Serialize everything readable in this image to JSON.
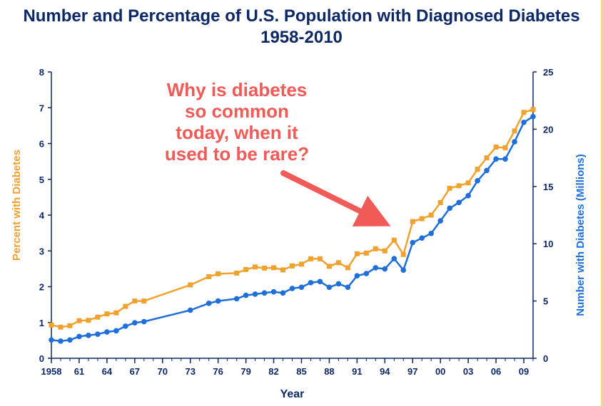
{
  "title_line1": "Number and Percentage of U.S. Population with Diagnosed Diabetes",
  "title_line2": "1958-2010",
  "chart_data": {
    "type": "line",
    "title": "Number and Percentage of U.S. Population with Diagnosed Diabetes 1958-2010",
    "xlabel": "Year",
    "ylabel_left": "Percent with Diabetes",
    "ylabel_right": "Number with Diabetes (Millions)",
    "xlim": [
      1958,
      2010
    ],
    "ylim_left": [
      0,
      8
    ],
    "ylim_right": [
      0,
      25
    ],
    "x_tick_labels": [
      "1958",
      "61",
      "64",
      "67",
      "70",
      "73",
      "76",
      "79",
      "82",
      "85",
      "88",
      "91",
      "94",
      "97",
      "00",
      "03",
      "06",
      "09"
    ],
    "x_tick_years": [
      1958,
      1961,
      1964,
      1967,
      1970,
      1973,
      1976,
      1979,
      1982,
      1985,
      1988,
      1991,
      1994,
      1997,
      2000,
      2003,
      2006,
      2009
    ],
    "y_left_ticks": [
      "0",
      "1",
      "2",
      "3",
      "4",
      "5",
      "6",
      "7",
      "8"
    ],
    "y_right_ticks": [
      "0",
      "5",
      "10",
      "15",
      "20",
      "25"
    ],
    "annotation": [
      "Why is diabetes",
      "so common",
      "today, when it",
      "used to be rare?"
    ],
    "grid": false,
    "series": [
      {
        "axis": "left",
        "color": "#f0a22e",
        "x": [
          1958,
          1959,
          1960,
          1961,
          1962,
          1963,
          1964,
          1965,
          1966,
          1967,
          1968,
          1973,
          1975,
          1976,
          1978,
          1979,
          1980,
          1981,
          1982,
          1983,
          1984,
          1985,
          1986,
          1987,
          1988,
          1989,
          1990,
          1991,
          1992,
          1993,
          1994,
          1995,
          1996,
          1997,
          1998,
          1999,
          2000,
          2001,
          2002,
          2003,
          2004,
          2005,
          2006,
          2007,
          2008,
          2009,
          2010
        ],
        "y": [
          0.93,
          0.87,
          0.91,
          1.05,
          1.06,
          1.15,
          1.24,
          1.27,
          1.45,
          1.6,
          1.6,
          2.05,
          2.28,
          2.36,
          2.38,
          2.48,
          2.55,
          2.52,
          2.53,
          2.47,
          2.58,
          2.63,
          2.78,
          2.78,
          2.57,
          2.67,
          2.53,
          2.92,
          2.94,
          3.06,
          3.0,
          3.3,
          2.9,
          3.82,
          3.9,
          4.0,
          4.35,
          4.75,
          4.82,
          4.9,
          5.28,
          5.6,
          5.9,
          5.88,
          6.35,
          6.87,
          6.95
        ]
      },
      {
        "axis": "right",
        "color": "#1e6fd9",
        "x": [
          1958,
          1959,
          1960,
          1961,
          1962,
          1963,
          1964,
          1965,
          1966,
          1967,
          1968,
          1973,
          1975,
          1976,
          1978,
          1979,
          1980,
          1981,
          1982,
          1983,
          1984,
          1985,
          1986,
          1987,
          1988,
          1989,
          1990,
          1991,
          1992,
          1993,
          1994,
          1995,
          1996,
          1997,
          1998,
          1999,
          2000,
          2001,
          2002,
          2003,
          2004,
          2005,
          2006,
          2007,
          2008,
          2009,
          2010
        ],
        "y": [
          1.6,
          1.5,
          1.6,
          1.9,
          2.0,
          2.1,
          2.3,
          2.4,
          2.8,
          3.1,
          3.2,
          4.2,
          4.8,
          5.0,
          5.2,
          5.5,
          5.6,
          5.7,
          5.8,
          5.7,
          6.1,
          6.2,
          6.6,
          6.7,
          6.2,
          6.5,
          6.2,
          7.2,
          7.4,
          7.9,
          7.8,
          8.7,
          7.7,
          10.1,
          10.5,
          10.9,
          12.0,
          13.1,
          13.6,
          14.2,
          15.5,
          16.4,
          17.4,
          17.4,
          18.9,
          20.6,
          21.1
        ]
      }
    ]
  }
}
